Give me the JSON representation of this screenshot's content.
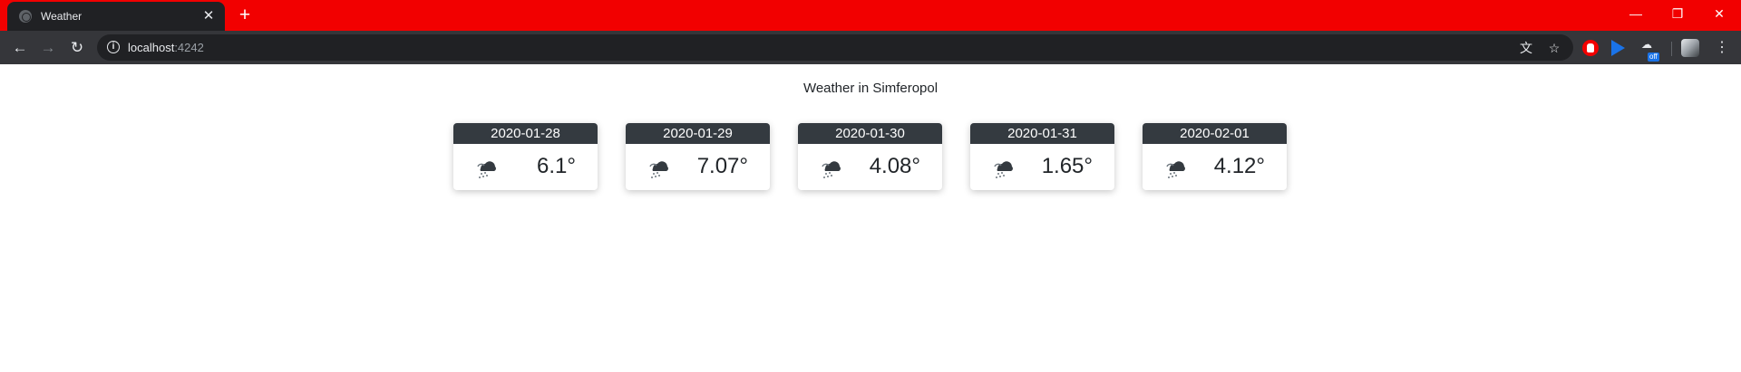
{
  "browser": {
    "tab_title": "Weather",
    "tab_close": "✕",
    "new_tab": "+",
    "url_host": "localhost",
    "url_port": ":4242",
    "info_icon": "i",
    "translate_icon": "文",
    "star_icon": "☆",
    "ext_off_label": "off",
    "window_minimize": "—",
    "window_restore": "❐",
    "window_close": "✕",
    "back": "←",
    "forward": "→",
    "reload": "↻",
    "menu": "⋮"
  },
  "page": {
    "heading": "Weather in Simferopol"
  },
  "forecast": [
    {
      "date": "2020-01-28",
      "temp": "6.1°",
      "icon": "cloud-sleet-icon"
    },
    {
      "date": "2020-01-29",
      "temp": "7.07°",
      "icon": "cloud-sleet-icon"
    },
    {
      "date": "2020-01-30",
      "temp": "4.08°",
      "icon": "cloud-sleet-icon"
    },
    {
      "date": "2020-01-31",
      "temp": "1.65°",
      "icon": "cloud-sleet-icon"
    },
    {
      "date": "2020-02-01",
      "temp": "4.12°",
      "icon": "cloud-sleet-icon"
    }
  ],
  "colors": {
    "titlebar": "#f20000",
    "toolbar": "#35363a",
    "card_header": "#343a40"
  }
}
